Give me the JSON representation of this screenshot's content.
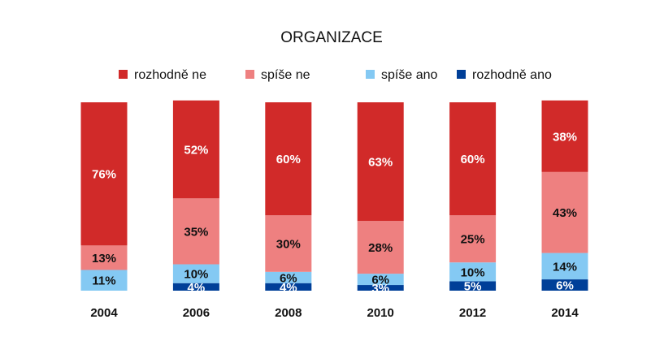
{
  "chart_data": {
    "type": "bar",
    "stacked": true,
    "title": "ORGANIZACE",
    "categories": [
      "2004",
      "2006",
      "2008",
      "2010",
      "2012",
      "2014"
    ],
    "legend_position": "top",
    "grid": false,
    "ylim": [
      0,
      100
    ],
    "series": [
      {
        "name": "rozhodně ne",
        "color": "#d12a29",
        "text_color": "#ffffff",
        "values": [
          76,
          52,
          60,
          63,
          60,
          38
        ]
      },
      {
        "name": "spíše ne",
        "color": "#ee8080",
        "text_color": "#111111",
        "values": [
          13,
          35,
          30,
          28,
          25,
          43
        ]
      },
      {
        "name": "spíše ano",
        "color": "#84c9f3",
        "text_color": "#111111",
        "values": [
          11,
          10,
          6,
          6,
          10,
          14
        ]
      },
      {
        "name": "rozhodně ano",
        "color": "#003f98",
        "text_color": "#ffffff",
        "values": [
          0,
          4,
          4,
          3,
          5,
          6
        ]
      }
    ],
    "value_labels": [
      [
        "76%",
        "52%",
        "60%",
        "63%",
        "60%",
        "38%"
      ],
      [
        "13%",
        "35%",
        "30%",
        "28%",
        "25%",
        "43%"
      ],
      [
        "11%",
        "10%",
        "6%",
        "6%",
        "10%",
        "14%"
      ],
      [
        "",
        "4%",
        "4%",
        "3%",
        "5%",
        "6%"
      ]
    ]
  }
}
